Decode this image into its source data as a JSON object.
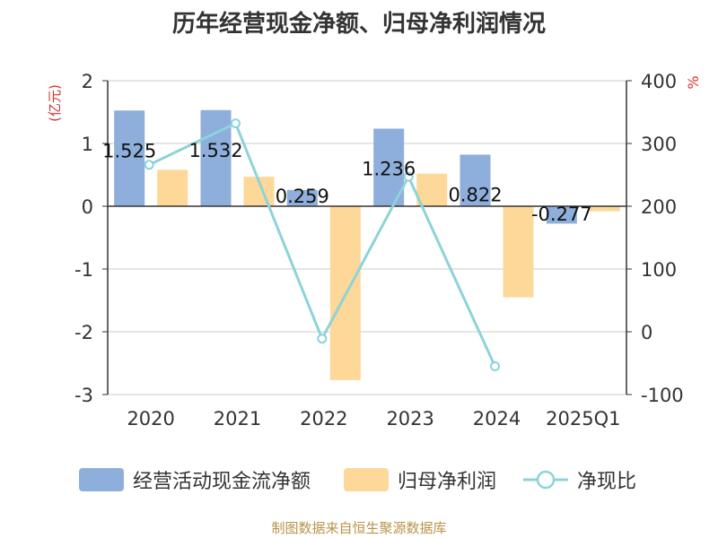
{
  "title": "历年经营现金净额、归母净利润情况",
  "footer": "制图数据来自恒生聚源数据库",
  "colors": {
    "cashflow": "#8eaedb",
    "profit": "#fdd899",
    "ratio": "#8dd3d9",
    "grid": "#cccccc",
    "axis": "#333333",
    "unit": "#d9322e",
    "text": "#333333"
  },
  "chart_data": {
    "type": "bar",
    "title": "历年经营现金净额、归母净利润情况",
    "categories": [
      "2020",
      "2021",
      "2022",
      "2023",
      "2024",
      "2025Q1"
    ],
    "y_left": {
      "label": "(亿元)",
      "ylim": [
        -3,
        2
      ],
      "ticks": [
        2,
        1,
        0,
        -1,
        -2,
        -3
      ]
    },
    "y_right": {
      "label": "%",
      "ylim": [
        -100,
        400
      ],
      "ticks": [
        400,
        300,
        200,
        100,
        0,
        -100
      ]
    },
    "series": [
      {
        "name": "经营活动现金流净额",
        "kind": "bar",
        "axis": "left",
        "values": [
          1.525,
          1.532,
          0.259,
          1.236,
          0.822,
          -0.277
        ],
        "labels": [
          "1.525",
          "1.532",
          "0.259",
          "1.236",
          "0.822",
          "-0.277"
        ]
      },
      {
        "name": "归母净利润",
        "kind": "bar",
        "axis": "left",
        "values": [
          0.58,
          0.47,
          -2.77,
          0.52,
          -1.45,
          -0.08
        ]
      },
      {
        "name": "净现比",
        "kind": "line",
        "axis": "right",
        "values": [
          266,
          332,
          -11,
          247,
          -55,
          null
        ]
      }
    ]
  },
  "legend": [
    {
      "label": "经营活动现金流净额"
    },
    {
      "label": "归母净利润"
    },
    {
      "label": "净现比"
    }
  ]
}
